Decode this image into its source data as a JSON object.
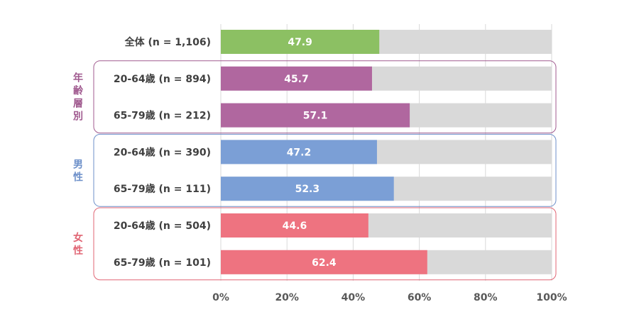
{
  "chart_data": {
    "type": "bar",
    "orientation": "horizontal",
    "stacked_remainder_to": 100,
    "categories": [
      "全体 (n = 1,106)",
      "20-64歳 (n = 894)",
      "65-79歳 (n = 212)",
      "20-64歳 (n = 390)",
      "65-79歳 (n = 111)",
      "20-64歳 (n = 504)",
      "65-79歳 (n = 101)"
    ],
    "values": [
      47.9,
      45.7,
      57.1,
      47.2,
      52.3,
      44.6,
      62.4
    ],
    "value_labels": [
      "47.9",
      "45.7",
      "57.1",
      "47.2",
      "52.3",
      "44.6",
      "62.4"
    ],
    "bar_colors": [
      "#8cc063",
      "#b0679f",
      "#b0679f",
      "#7b9fd6",
      "#7b9fd6",
      "#ee7380",
      "#ee7380"
    ],
    "remainder_color": "#d9d9d9",
    "groups": [
      {
        "label": "年齢層別",
        "chars": [
          "年",
          "齢",
          "層",
          "別"
        ],
        "color": "#a05a8f",
        "rows": [
          1,
          2
        ]
      },
      {
        "label": "男性",
        "chars": [
          "男",
          "性"
        ],
        "color": "#6c8fc9",
        "rows": [
          3,
          4
        ]
      },
      {
        "label": "女性",
        "chars": [
          "女",
          "性"
        ],
        "color": "#e06473",
        "rows": [
          5,
          6
        ]
      }
    ],
    "x_ticks": [
      0,
      20,
      40,
      60,
      80,
      100
    ],
    "x_tick_labels": [
      "0%",
      "20%",
      "40%",
      "60%",
      "80%",
      "100%"
    ],
    "xlim": [
      0,
      100
    ],
    "grid": true,
    "title": "",
    "xlabel": "",
    "ylabel": ""
  }
}
